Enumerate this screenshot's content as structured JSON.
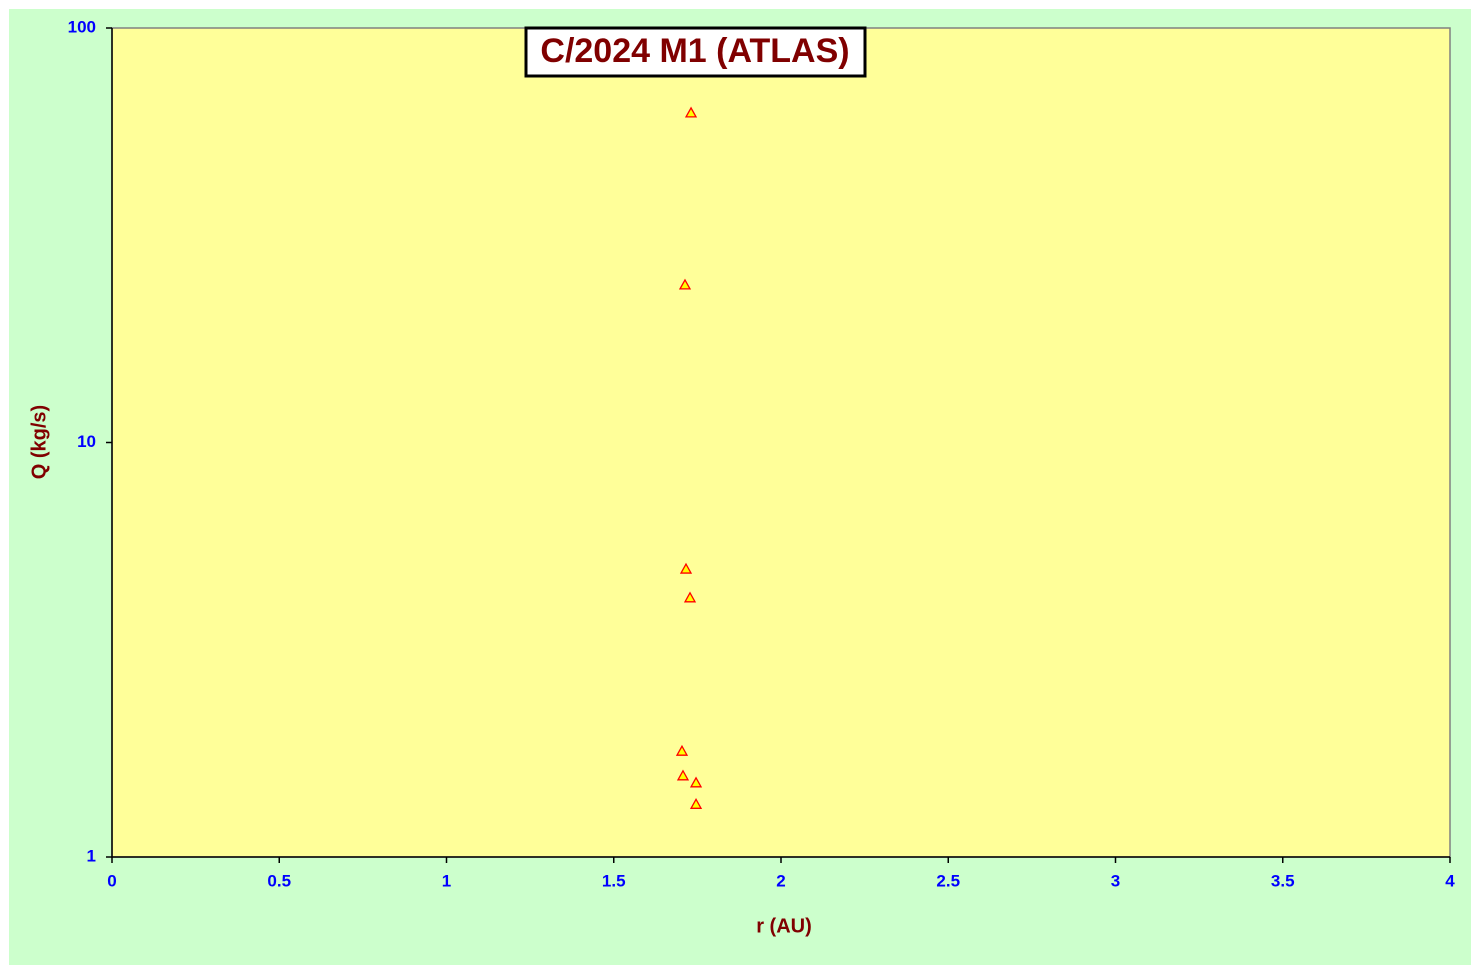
{
  "chart_data": {
    "type": "scatter",
    "title": "C/2024 M1 (ATLAS)",
    "xlabel": "r (AU)",
    "ylabel": "Q (kg/s)",
    "x": [
      1.731,
      1.713,
      1.716,
      1.728,
      1.704,
      1.707,
      1.746,
      1.746
    ],
    "values": [
      62.4,
      24.0,
      4.95,
      4.22,
      1.8,
      1.57,
      1.51,
      1.34
    ],
    "color": "#ffff00",
    "edge_color": "#ff0000",
    "marker": "triangle",
    "xlim": [
      0,
      4
    ],
    "xticks": [
      0,
      0.5,
      1,
      1.5,
      2,
      2.5,
      3,
      3.5,
      4
    ],
    "ylim": [
      1,
      100
    ],
    "yticks": [
      1,
      10,
      100
    ],
    "log_y": true,
    "grid": false
  }
}
